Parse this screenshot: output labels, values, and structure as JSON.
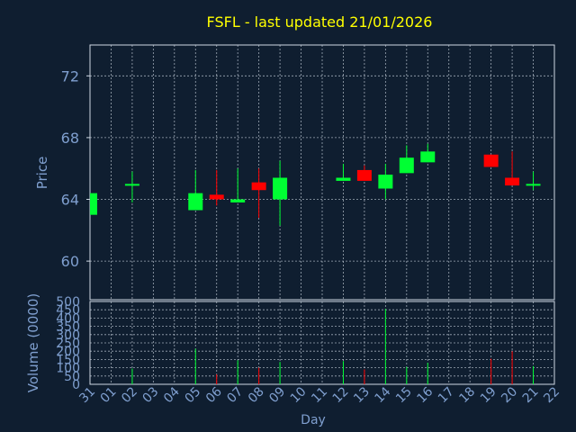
{
  "chart_data": {
    "type": "candlestick",
    "title": "FSFL - last updated 21/01/2026",
    "xlabel": "Day",
    "x_tick_labels": [
      "31",
      "01",
      "02",
      "03",
      "04",
      "05",
      "06",
      "07",
      "08",
      "09",
      "10",
      "11",
      "12",
      "13",
      "14",
      "15",
      "16",
      "17",
      "18",
      "19",
      "20",
      "21",
      "22"
    ],
    "price_panel": {
      "ylabel": "Price",
      "ylim": [
        57.5,
        74
      ],
      "y_ticks": [
        60,
        64,
        68,
        72
      ],
      "grid": true,
      "candles": [
        {
          "day": "31",
          "open": 63.0,
          "high": 64.4,
          "low": 63.0,
          "close": 64.4
        },
        {
          "day": "02",
          "open": 65.0,
          "high": 65.8,
          "low": 63.8,
          "close": 65.0
        },
        {
          "day": "05",
          "open": 63.3,
          "high": 65.9,
          "low": 63.3,
          "close": 64.4
        },
        {
          "day": "06",
          "open": 64.3,
          "high": 65.9,
          "low": 63.6,
          "close": 64.0
        },
        {
          "day": "07",
          "open": 63.8,
          "high": 66.0,
          "low": 63.8,
          "close": 64.0
        },
        {
          "day": "08",
          "open": 65.1,
          "high": 66.0,
          "low": 62.8,
          "close": 64.6
        },
        {
          "day": "09",
          "open": 64.0,
          "high": 66.5,
          "low": 62.3,
          "close": 65.4
        },
        {
          "day": "12",
          "open": 65.2,
          "high": 66.3,
          "low": 65.2,
          "close": 65.4
        },
        {
          "day": "13",
          "open": 65.9,
          "high": 66.2,
          "low": 65.2,
          "close": 65.2
        },
        {
          "day": "14",
          "open": 64.7,
          "high": 66.3,
          "low": 64.0,
          "close": 65.6
        },
        {
          "day": "15",
          "open": 65.7,
          "high": 67.5,
          "low": 65.7,
          "close": 66.7
        },
        {
          "day": "16",
          "open": 66.4,
          "high": 67.6,
          "low": 66.4,
          "close": 67.1
        },
        {
          "day": "19",
          "open": 66.9,
          "high": 66.9,
          "low": 66.1,
          "close": 66.1
        },
        {
          "day": "20",
          "open": 65.4,
          "high": 67.1,
          "low": 64.9,
          "close": 64.9
        },
        {
          "day": "21",
          "open": 64.9,
          "high": 65.8,
          "low": 64.6,
          "close": 65.0
        }
      ]
    },
    "volume_panel": {
      "ylabel": "Volume (0000)",
      "ylim": [
        0,
        500
      ],
      "y_ticks": [
        0,
        50,
        100,
        150,
        200,
        250,
        300,
        350,
        400,
        450,
        500
      ],
      "bars": [
        {
          "day": "02",
          "value": 95,
          "direction": "up"
        },
        {
          "day": "05",
          "value": 215,
          "direction": "up"
        },
        {
          "day": "06",
          "value": 60,
          "direction": "down"
        },
        {
          "day": "07",
          "value": 145,
          "direction": "up"
        },
        {
          "day": "08",
          "value": 100,
          "direction": "down"
        },
        {
          "day": "09",
          "value": 135,
          "direction": "up"
        },
        {
          "day": "12",
          "value": 140,
          "direction": "up"
        },
        {
          "day": "13",
          "value": 90,
          "direction": "down"
        },
        {
          "day": "14",
          "value": 455,
          "direction": "up"
        },
        {
          "day": "15",
          "value": 105,
          "direction": "up"
        },
        {
          "day": "16",
          "value": 130,
          "direction": "up"
        },
        {
          "day": "19",
          "value": 155,
          "direction": "down"
        },
        {
          "day": "20",
          "value": 200,
          "direction": "down"
        },
        {
          "day": "21",
          "value": 110,
          "direction": "up"
        }
      ]
    },
    "colors": {
      "background": "#0f1e30",
      "up": "#00ff33",
      "down": "#ff0000",
      "title": "#ffff00",
      "axis_text": "#7f9fcf",
      "frame": "#cfd8e3",
      "grid": "#cfd8e3"
    }
  }
}
